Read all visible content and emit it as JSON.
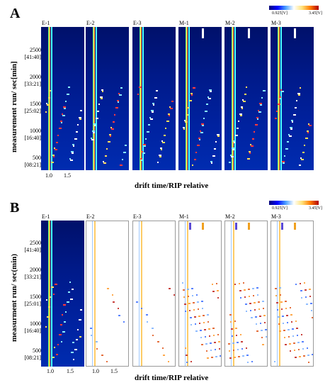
{
  "panel_a": {
    "letter": "A",
    "scale_min": "0.925[V]",
    "scale_max": "3.45[V]",
    "y_title": "measurement run/ sec[min]",
    "x_title": "drift time/RIP relative",
    "y_ticks": [
      "2500",
      "[41:40]",
      "2000",
      "[33:21]",
      "1500",
      "[25:02]",
      "1000",
      "[16:40]",
      "500",
      "[08:21]"
    ],
    "x_ticks": [
      "1.0",
      "1.5"
    ],
    "samples": [
      "E-1",
      "E-2",
      "E-3",
      "M-1",
      "M-2",
      "M-3"
    ]
  },
  "panel_b": {
    "letter": "B",
    "scale_min": "0.925[V]",
    "scale_max": "3.45[V]",
    "y_title": "measurment run/ sec(min)",
    "x_title": "drift time/RIP relative",
    "y_ticks": [
      "2500",
      "[41:40]",
      "2000",
      "[33:21]",
      "1500",
      "[25:01]",
      "1000",
      "[16:40]",
      "500",
      "[08:21]"
    ],
    "x_ticks": [
      "1.0",
      "1.5",
      "1.0",
      "1.5"
    ],
    "samples": [
      "E-1",
      "E-2",
      "E-3",
      "M-1",
      "M-2",
      "M-3"
    ]
  }
}
